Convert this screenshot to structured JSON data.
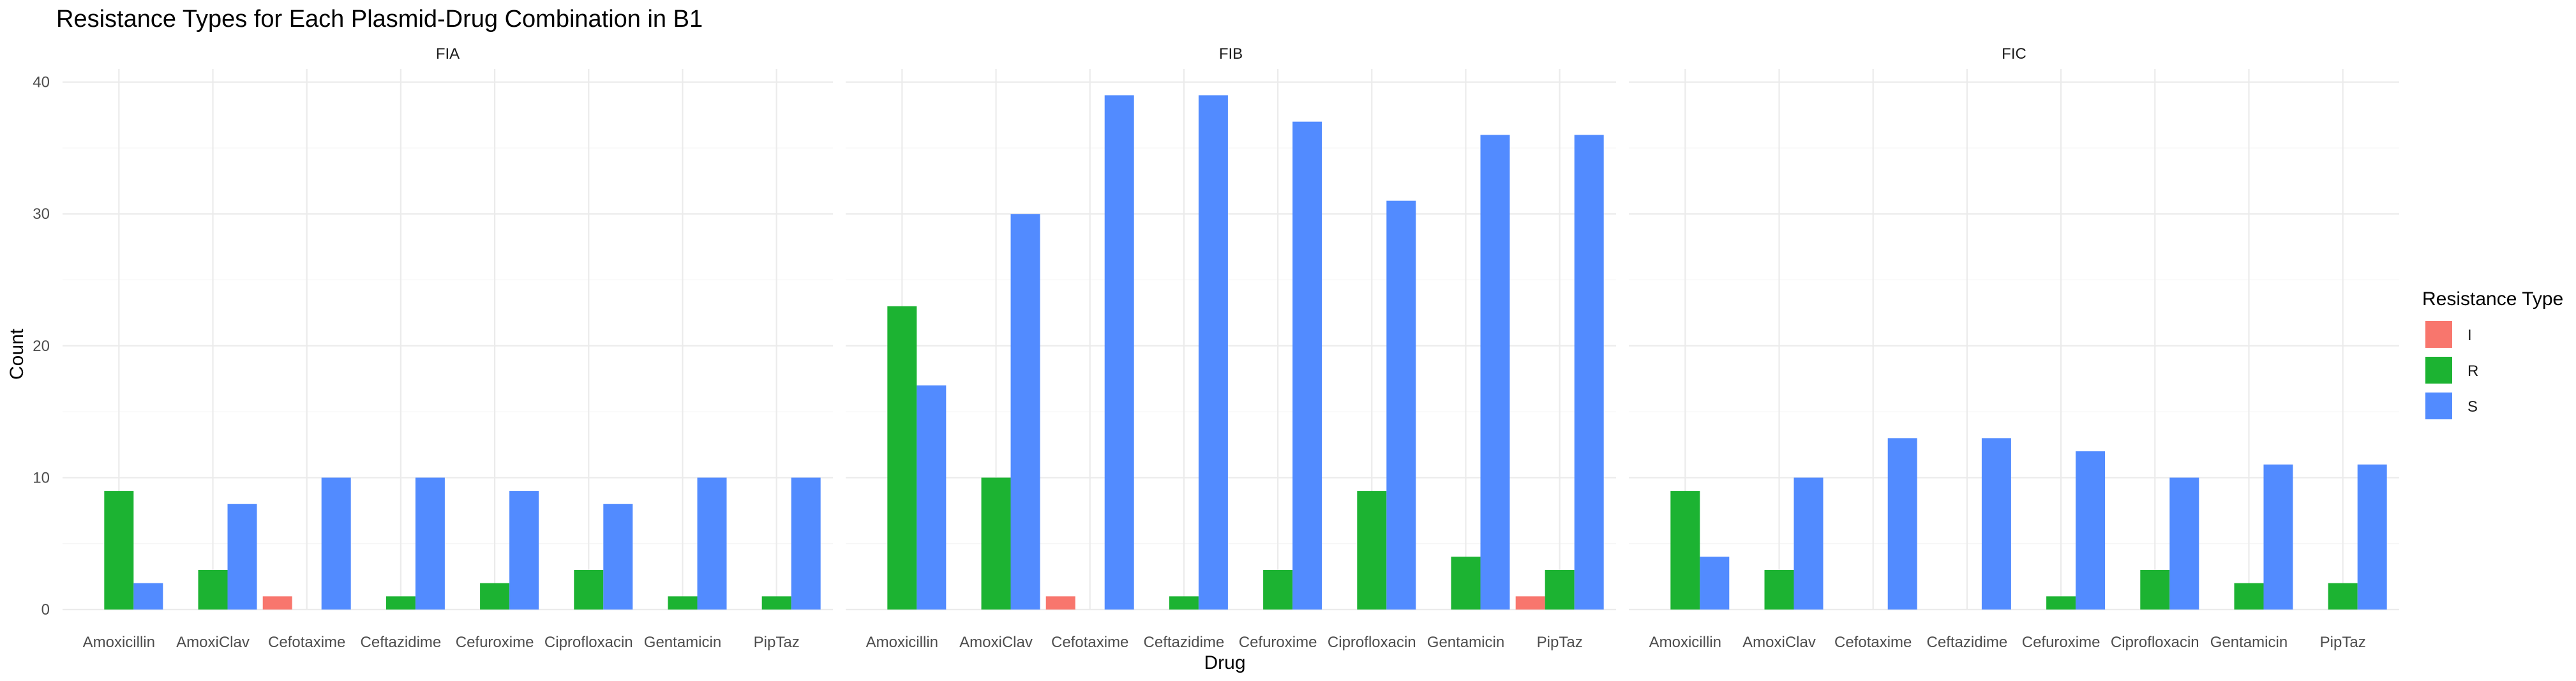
{
  "chart_data": {
    "type": "bar",
    "title": "Resistance Types for Each Plasmid-Drug Combination in B1",
    "xlabel": "Drug",
    "ylabel": "Count",
    "ylim": [
      0,
      41
    ],
    "yticks": [
      0,
      10,
      20,
      30,
      40
    ],
    "grid": true,
    "legend": {
      "title": "Resistance Type",
      "placement": "right",
      "entries": [
        {
          "name": "I",
          "color": "#F8766D"
        },
        {
          "name": "R",
          "color": "#1CB332"
        },
        {
          "name": "S",
          "color": "#528BFF"
        }
      ]
    },
    "categories": [
      "Amoxicillin",
      "AmoxiClav",
      "Cefotaxime",
      "Ceftazidime",
      "Cefuroxime",
      "Ciprofloxacin",
      "Gentamicin",
      "PipTaz"
    ],
    "facets": [
      {
        "name": "FIA",
        "series": [
          {
            "name": "I",
            "values": [
              0,
              0,
              1,
              0,
              0,
              0,
              0,
              0
            ]
          },
          {
            "name": "R",
            "values": [
              9,
              3,
              0,
              1,
              2,
              3,
              1,
              1
            ]
          },
          {
            "name": "S",
            "values": [
              2,
              8,
              10,
              10,
              9,
              8,
              10,
              10
            ]
          }
        ]
      },
      {
        "name": "FIB",
        "series": [
          {
            "name": "I",
            "values": [
              0,
              0,
              1,
              0,
              0,
              0,
              0,
              1
            ]
          },
          {
            "name": "R",
            "values": [
              23,
              10,
              0,
              1,
              3,
              9,
              4,
              3
            ]
          },
          {
            "name": "S",
            "values": [
              17,
              30,
              39,
              39,
              37,
              31,
              36,
              36
            ]
          }
        ]
      },
      {
        "name": "FIC",
        "series": [
          {
            "name": "I",
            "values": [
              0,
              0,
              0,
              0,
              0,
              0,
              0,
              0
            ]
          },
          {
            "name": "R",
            "values": [
              9,
              3,
              0,
              0,
              1,
              3,
              2,
              2
            ]
          },
          {
            "name": "S",
            "values": [
              4,
              10,
              13,
              13,
              12,
              10,
              11,
              11
            ]
          }
        ]
      }
    ]
  }
}
